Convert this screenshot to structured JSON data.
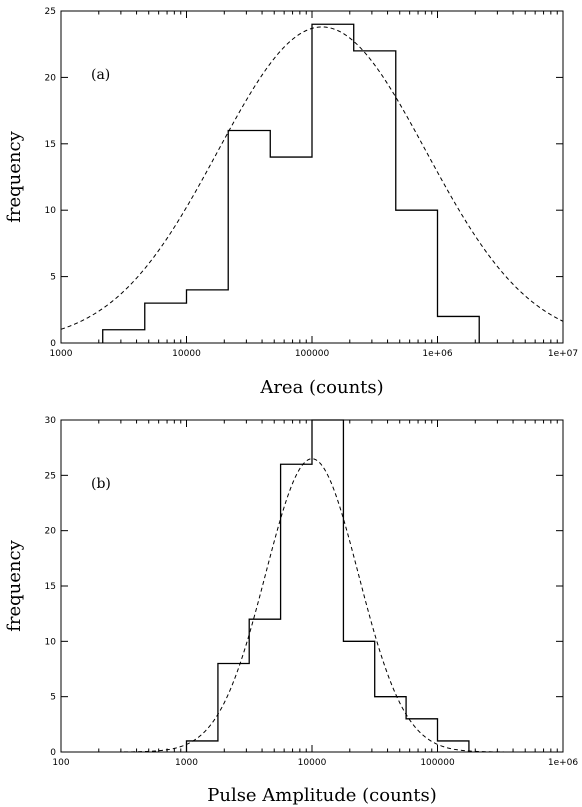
{
  "chart_data": [
    {
      "type": "histogram",
      "panel_label": "(a)",
      "xlabel": "Area (counts)",
      "ylabel": "frequency",
      "xscale": "log",
      "xlim": [
        1000,
        10000000
      ],
      "ylim": [
        0,
        25
      ],
      "x_ticks": [
        {
          "value": 1000,
          "label": "1000"
        },
        {
          "value": 10000,
          "label": "10000"
        },
        {
          "value": 100000,
          "label": "100000"
        },
        {
          "value": 1000000,
          "label": "1e+06"
        },
        {
          "value": 10000000,
          "label": "1e+07"
        }
      ],
      "y_ticks": [
        0,
        5,
        10,
        15,
        20,
        25
      ],
      "bins": [
        {
          "x0": 2150,
          "x1": 4650,
          "count": 1
        },
        {
          "x0": 4650,
          "x1": 10000,
          "count": 3
        },
        {
          "x0": 10000,
          "x1": 21500,
          "count": 4
        },
        {
          "x0": 21500,
          "x1": 46500,
          "count": 16
        },
        {
          "x0": 46500,
          "x1": 100000,
          "count": 14
        },
        {
          "x0": 100000,
          "x1": 215000,
          "count": 24
        },
        {
          "x0": 215000,
          "x1": 465000,
          "count": 22
        },
        {
          "x0": 465000,
          "x1": 1000000,
          "count": 10
        },
        {
          "x0": 1000000,
          "x1": 2150000,
          "count": 2
        }
      ],
      "fit": {
        "type": "lognormal",
        "peak": 23.8,
        "center": 120000,
        "sigma_decades": 0.83,
        "style": "dashed"
      }
    },
    {
      "type": "histogram",
      "panel_label": "(b)",
      "xlabel": "Pulse Amplitude (counts)",
      "ylabel": "frequency",
      "xscale": "log",
      "xlim": [
        100,
        1000000
      ],
      "ylim": [
        0,
        30
      ],
      "x_ticks": [
        {
          "value": 100,
          "label": "100"
        },
        {
          "value": 1000,
          "label": "1000"
        },
        {
          "value": 10000,
          "label": "10000"
        },
        {
          "value": 100000,
          "label": "100000"
        },
        {
          "value": 1000000,
          "label": "1e+06"
        }
      ],
      "y_ticks": [
        0,
        5,
        10,
        15,
        20,
        25,
        30
      ],
      "bins": [
        {
          "x0": 1000,
          "x1": 1780,
          "count": 1
        },
        {
          "x0": 1780,
          "x1": 3160,
          "count": 8
        },
        {
          "x0": 3160,
          "x1": 5620,
          "count": 12
        },
        {
          "x0": 5620,
          "x1": 10000,
          "count": 26
        },
        {
          "x0": 10000,
          "x1": 17800,
          "count": 30
        },
        {
          "x0": 17800,
          "x1": 31600,
          "count": 10
        },
        {
          "x0": 31600,
          "x1": 56200,
          "count": 5
        },
        {
          "x0": 56200,
          "x1": 100000,
          "count": 3
        },
        {
          "x0": 100000,
          "x1": 178000,
          "count": 1
        }
      ],
      "fit": {
        "type": "lognormal",
        "peak": 26.5,
        "center": 10000,
        "sigma_decades": 0.37,
        "style": "dashed"
      }
    }
  ]
}
